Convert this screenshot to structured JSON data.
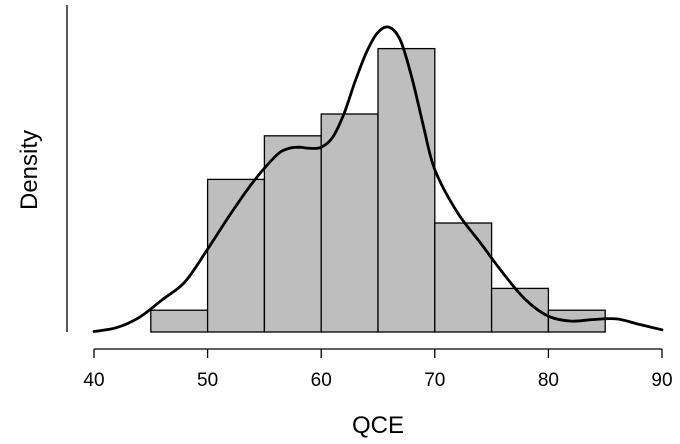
{
  "chart_data": {
    "type": "bar",
    "title": "",
    "xlabel": "QCE",
    "ylabel": "Density",
    "xlim": [
      40,
      90
    ],
    "ylim": [
      0,
      0.06
    ],
    "grid": false,
    "colors": {
      "bar_fill": "#bebebe",
      "bar_stroke": "#000000",
      "curve": "#000000"
    },
    "x_ticks": [
      "40",
      "50",
      "60",
      "70",
      "80",
      "90"
    ],
    "bins": [
      {
        "x0": 45,
        "x1": 50,
        "value": 0.004
      },
      {
        "x0": 50,
        "x1": 55,
        "value": 0.028
      },
      {
        "x0": 55,
        "x1": 60,
        "value": 0.036
      },
      {
        "x0": 60,
        "x1": 65,
        "value": 0.04
      },
      {
        "x0": 65,
        "x1": 70,
        "value": 0.052
      },
      {
        "x0": 70,
        "x1": 75,
        "value": 0.02
      },
      {
        "x0": 75,
        "x1": 80,
        "value": 0.008
      },
      {
        "x0": 80,
        "x1": 85,
        "value": 0.004
      }
    ],
    "density_curve": {
      "x": [
        40,
        42,
        44,
        46,
        48,
        50,
        52,
        54,
        56,
        57,
        58,
        59,
        60,
        61,
        62,
        63,
        64,
        65,
        66,
        67,
        68,
        69,
        70,
        72,
        74,
        76,
        78,
        80,
        82,
        84,
        86,
        88,
        90
      ],
      "y": [
        0.0001,
        0.0008,
        0.0027,
        0.0059,
        0.0092,
        0.0152,
        0.0216,
        0.0275,
        0.0323,
        0.0336,
        0.0339,
        0.0337,
        0.0339,
        0.0357,
        0.04,
        0.0461,
        0.0514,
        0.055,
        0.0559,
        0.0534,
        0.0465,
        0.0378,
        0.0298,
        0.0219,
        0.0164,
        0.0108,
        0.0059,
        0.0029,
        0.002,
        0.0023,
        0.0024,
        0.0014,
        0.0004
      ]
    }
  }
}
